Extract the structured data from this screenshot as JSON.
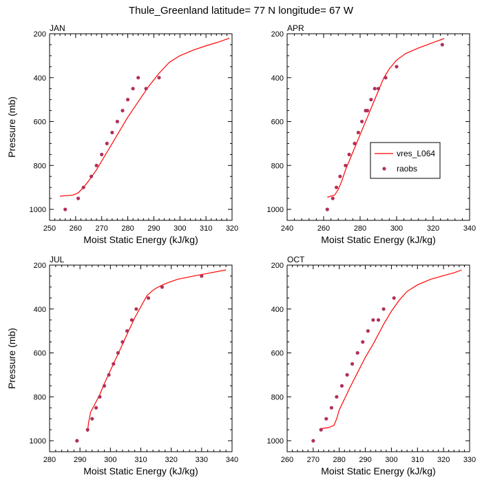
{
  "title": "Thule_Greenland  latitude= 77 N longitude= 67 W",
  "legend": {
    "line_label": "vres_L064",
    "marker_label": "raobs",
    "line_color": "#ff0000",
    "marker_color": "#b3305a"
  },
  "chart_data": [
    {
      "type": "line",
      "panel_label": "JAN",
      "xlabel": "Moist Static Energy (kJ/kg)",
      "ylabel": "Pressure (mb)",
      "xlim": [
        250,
        320
      ],
      "ylim": [
        1050,
        200
      ],
      "xticks": [
        250,
        260,
        270,
        280,
        290,
        300,
        310,
        320
      ],
      "yticks": [
        200,
        400,
        600,
        800,
        1000
      ],
      "model": {
        "name": "vres_L064",
        "x": [
          254,
          259,
          261,
          263,
          265,
          268,
          271,
          274,
          277,
          280,
          284,
          288,
          292,
          296,
          300,
          305,
          310,
          315,
          319
        ],
        "y": [
          940,
          935,
          925,
          900,
          870,
          820,
          760,
          700,
          640,
          580,
          510,
          440,
          380,
          330,
          300,
          275,
          255,
          237,
          220
        ]
      },
      "raobs": {
        "name": "raobs",
        "x": [
          256,
          261,
          263,
          266,
          268,
          270,
          272,
          274,
          276,
          278,
          280,
          282,
          284,
          287,
          292
        ],
        "y": [
          1000,
          950,
          900,
          850,
          800,
          750,
          700,
          650,
          600,
          550,
          500,
          450,
          400,
          450,
          400
        ]
      }
    },
    {
      "type": "line",
      "panel_label": "APR",
      "xlabel": "Moist Static Energy (kJ/kg)",
      "ylabel": "",
      "xlim": [
        240,
        340
      ],
      "ylim": [
        1050,
        200
      ],
      "xticks": [
        240,
        260,
        280,
        300,
        320,
        340
      ],
      "yticks": [
        200,
        400,
        600,
        800,
        1000
      ],
      "model": {
        "name": "vres_L064",
        "x": [
          262,
          266,
          268,
          270,
          272,
          275,
          278,
          281,
          284,
          287,
          290,
          293,
          296,
          300,
          305,
          312,
          320,
          326
        ],
        "y": [
          945,
          935,
          910,
          870,
          820,
          760,
          700,
          640,
          580,
          520,
          460,
          400,
          360,
          320,
          290,
          265,
          240,
          222
        ]
      },
      "raobs": {
        "name": "raobs",
        "x": [
          262,
          265,
          267,
          269,
          272,
          274,
          277,
          279,
          281,
          283,
          284,
          286,
          288,
          290,
          294,
          300,
          325
        ],
        "y": [
          1000,
          950,
          900,
          850,
          800,
          750,
          700,
          650,
          600,
          550,
          550,
          500,
          450,
          450,
          400,
          350,
          250
        ]
      }
    },
    {
      "type": "line",
      "panel_label": "JUL",
      "xlabel": "Moist Static Energy (kJ/kg)",
      "ylabel": "Pressure (mb)",
      "xlim": [
        280,
        340
      ],
      "ylim": [
        1050,
        200
      ],
      "xticks": [
        280,
        290,
        300,
        310,
        320,
        330,
        340
      ],
      "yticks": [
        200,
        400,
        600,
        800,
        1000
      ],
      "model": {
        "name": "vres_L064",
        "x": [
          292.5,
          292.8,
          293.5,
          295,
          296.5,
          298,
          300,
          302,
          304,
          306,
          308,
          310,
          312,
          313.5,
          315,
          318,
          322,
          328,
          333,
          338
        ],
        "y": [
          960,
          920,
          870,
          830,
          790,
          740,
          680,
          620,
          560,
          500,
          440,
          390,
          340,
          320,
          305,
          285,
          265,
          248,
          235,
          222
        ]
      },
      "raobs": {
        "name": "raobs",
        "x": [
          289,
          292.5,
          294,
          295.3,
          296.5,
          298,
          299.5,
          301,
          302.5,
          304,
          305.5,
          307,
          308.5,
          312.5,
          317,
          330
        ],
        "y": [
          1000,
          950,
          900,
          850,
          800,
          750,
          700,
          650,
          600,
          550,
          500,
          450,
          400,
          350,
          300,
          250
        ]
      }
    },
    {
      "type": "line",
      "panel_label": "OCT",
      "xlabel": "Moist Static Energy (kJ/kg)",
      "ylabel": "",
      "xlim": [
        260,
        330
      ],
      "ylim": [
        1050,
        200
      ],
      "xticks": [
        260,
        270,
        280,
        290,
        300,
        310,
        320,
        330
      ],
      "yticks": [
        200,
        400,
        600,
        800,
        1000
      ],
      "model": {
        "name": "vres_L064",
        "x": [
          273,
          276,
          278,
          279,
          280,
          282,
          284,
          287,
          290,
          293,
          297,
          300,
          303,
          306,
          310,
          315,
          320,
          324,
          327
        ],
        "y": [
          945,
          940,
          930,
          900,
          860,
          810,
          760,
          690,
          620,
          560,
          470,
          410,
          360,
          320,
          290,
          265,
          248,
          235,
          222
        ]
      },
      "raobs": {
        "name": "raobs",
        "x": [
          270,
          273,
          275,
          277,
          279,
          281,
          283,
          285,
          287,
          289,
          291,
          293,
          295,
          297,
          301
        ],
        "y": [
          1000,
          950,
          900,
          850,
          800,
          750,
          700,
          650,
          600,
          550,
          500,
          450,
          450,
          400,
          350
        ]
      }
    }
  ]
}
